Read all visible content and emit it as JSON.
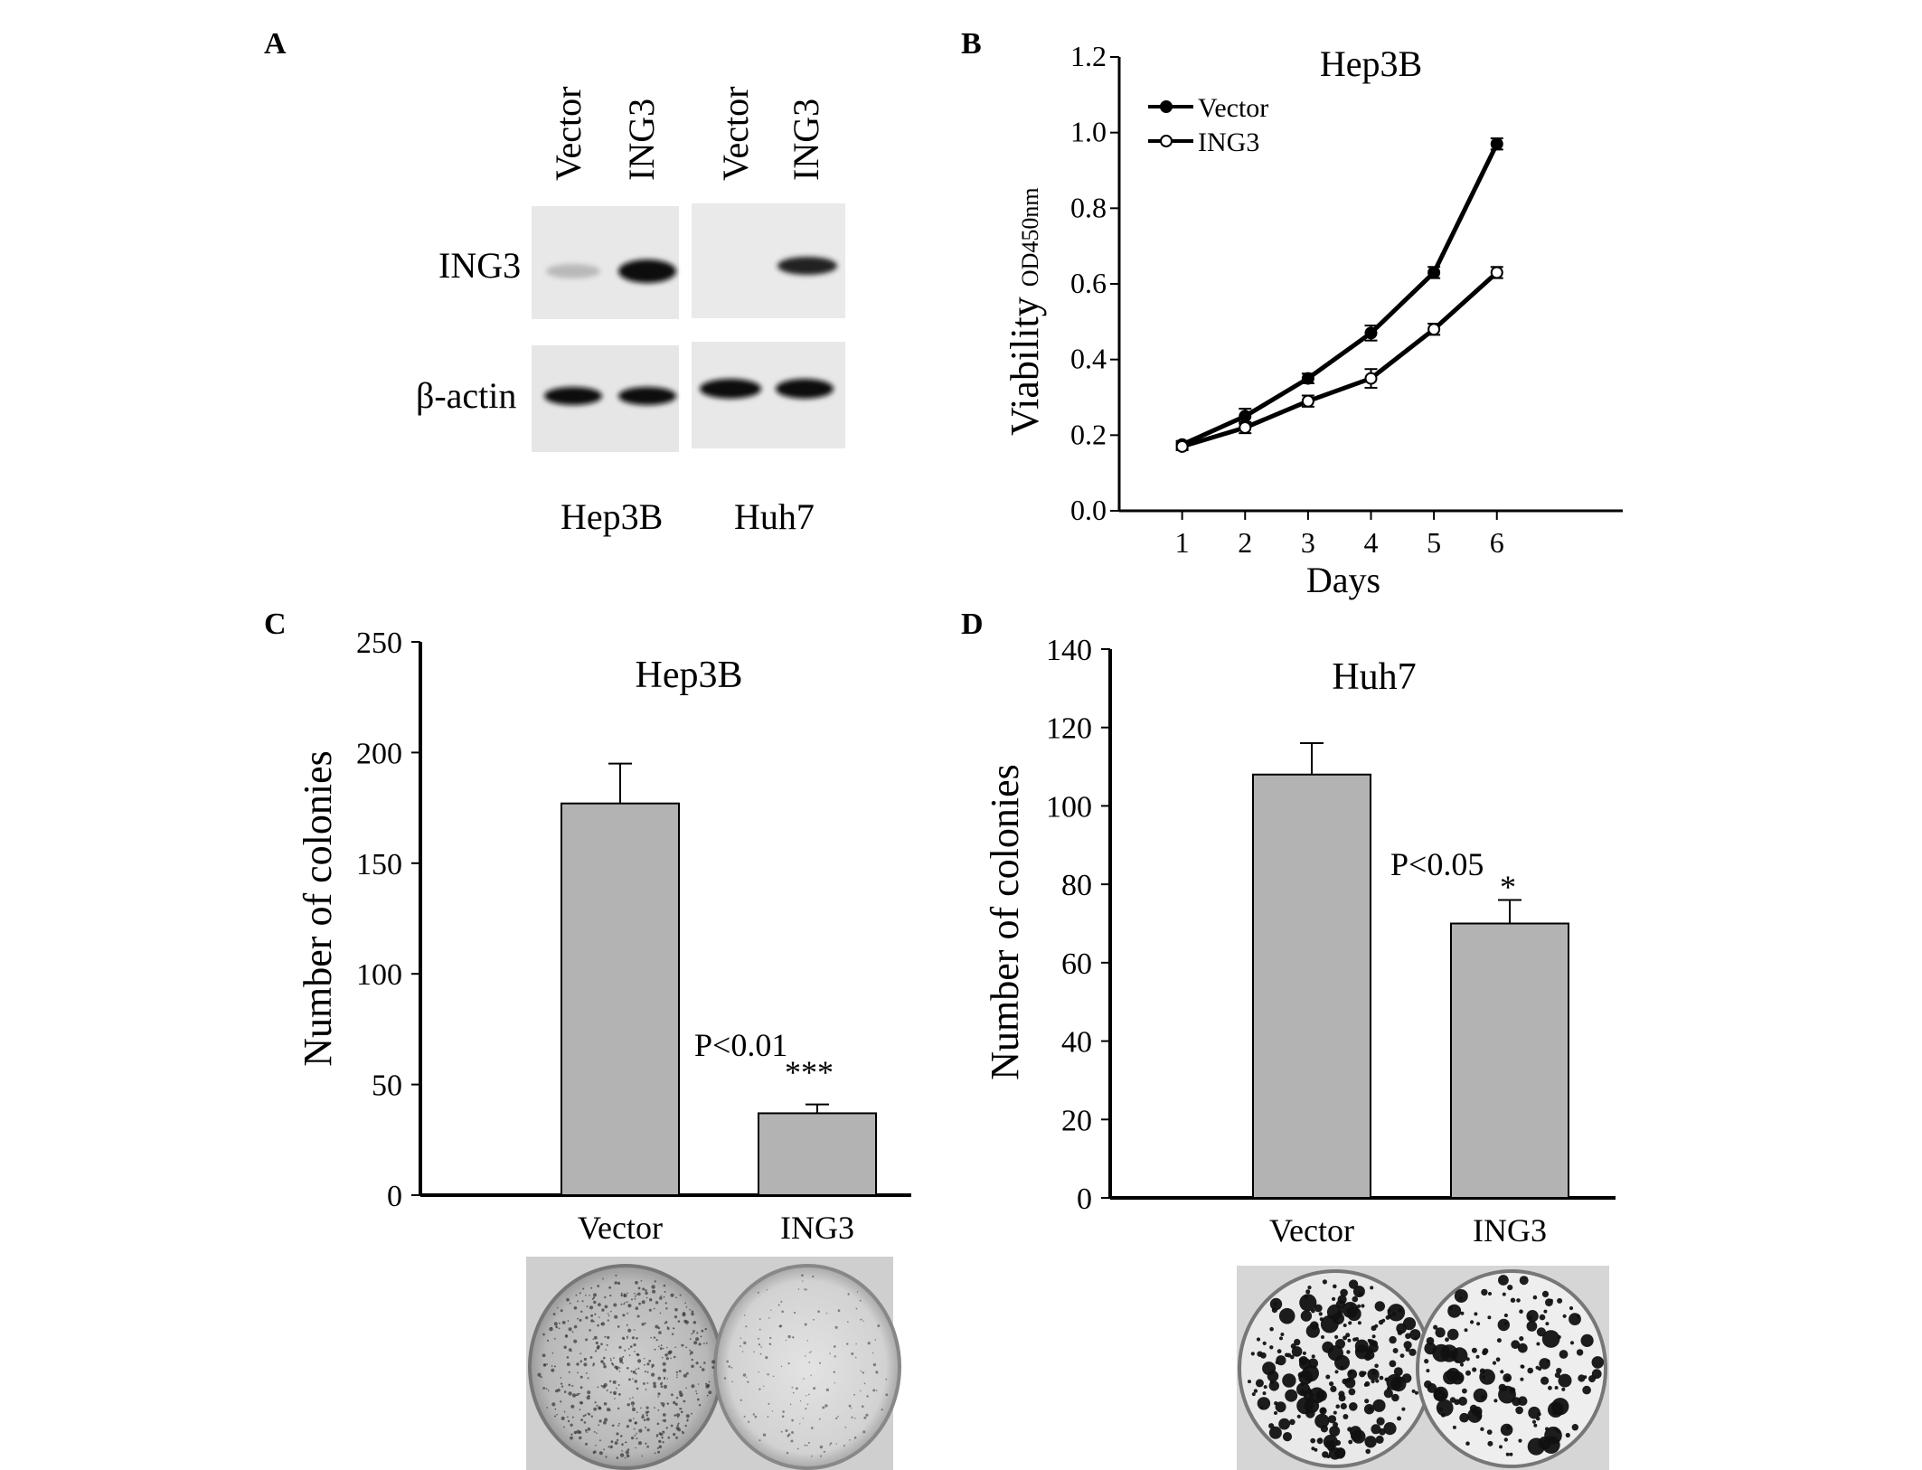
{
  "panels": {
    "a": {
      "letter": "A",
      "lanes": [
        "Vector",
        "ING3",
        "Vector",
        "ING3"
      ],
      "rows": [
        "ING3",
        "β-actin"
      ],
      "cell_lines": [
        "Hep3B",
        "Huh7"
      ]
    },
    "b": {
      "letter": "B"
    },
    "c": {
      "letter": "C",
      "xticks": [
        "Vector",
        "ING3"
      ]
    },
    "d": {
      "letter": "D",
      "xticks": [
        "Vector",
        "ING3"
      ]
    }
  },
  "chart_data": [
    {
      "type": "line",
      "title": "Hep3B",
      "xlabel": "Days",
      "ylabel": "Viability",
      "ylabel_sub": "OD450nm",
      "x": [
        1,
        2,
        3,
        4,
        5,
        6
      ],
      "xlim": [
        0,
        8
      ],
      "ylim": [
        0.0,
        1.2
      ],
      "yticks": [
        0.0,
        0.2,
        0.4,
        0.6,
        0.8,
        1.0,
        1.2
      ],
      "legend": "top-left",
      "series": [
        {
          "name": "Vector",
          "marker": "filled-circle",
          "values": [
            0.175,
            0.25,
            0.35,
            0.47,
            0.63,
            0.97
          ],
          "errors": [
            0.005,
            0.015,
            0.008,
            0.015,
            0.01,
            0.01
          ]
        },
        {
          "name": "ING3",
          "marker": "open-circle",
          "values": [
            0.17,
            0.22,
            0.29,
            0.35,
            0.48,
            0.63
          ],
          "errors": [
            0.005,
            0.01,
            0.01,
            0.02,
            0.01,
            0.01
          ]
        }
      ]
    },
    {
      "type": "bar",
      "title": "Hep3B",
      "ylabel": "Number of colonies",
      "categories": [
        "Vector",
        "ING3"
      ],
      "values": [
        177,
        37
      ],
      "errors": [
        18,
        4
      ],
      "ylim": [
        0,
        250
      ],
      "yticks": [
        0,
        50,
        100,
        150,
        200,
        250
      ],
      "annotation": "P<0.01",
      "significance": "***",
      "bar_color": "#b3b3b3"
    },
    {
      "type": "bar",
      "title": "Huh7",
      "ylabel": "Number of colonies",
      "categories": [
        "Vector",
        "ING3"
      ],
      "values": [
        108,
        70
      ],
      "errors": [
        8,
        6
      ],
      "ylim": [
        0,
        140
      ],
      "yticks": [
        0,
        20,
        40,
        60,
        80,
        100,
        120,
        140
      ],
      "annotation": "P<0.05",
      "significance": "*",
      "bar_color": "#b3b3b3"
    }
  ]
}
